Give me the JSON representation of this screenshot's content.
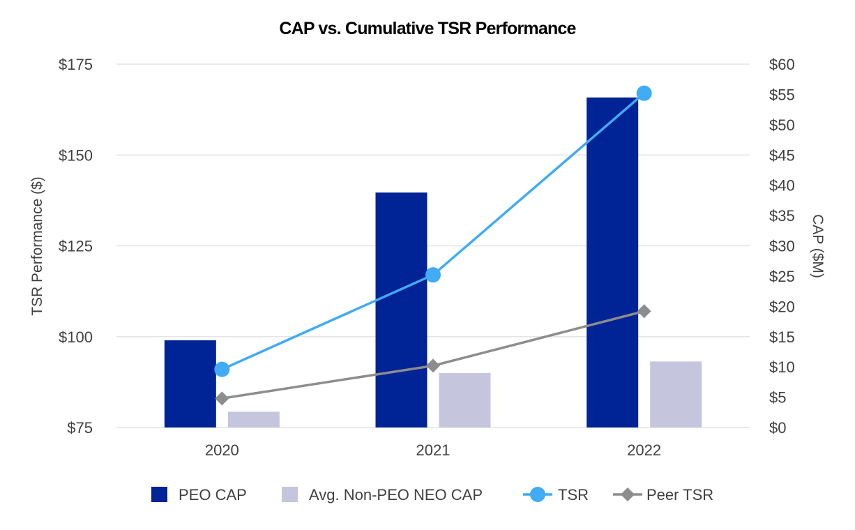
{
  "chart_data": {
    "type": "bar+line",
    "title": "CAP vs. Cumulative TSR Performance",
    "categories": [
      "2020",
      "2021",
      "2022"
    ],
    "left_axis": {
      "label": "TSR Performance ($)",
      "range": [
        75,
        175
      ],
      "ticks": [
        75,
        100,
        125,
        150,
        175
      ],
      "tick_labels": [
        "$75",
        "$100",
        "$125",
        "$150",
        "$175"
      ]
    },
    "right_axis": {
      "label": "CAP ($M)",
      "range": [
        0,
        60
      ],
      "ticks": [
        0,
        5,
        10,
        15,
        20,
        25,
        30,
        35,
        40,
        45,
        50,
        55,
        60
      ],
      "tick_labels": [
        "$0",
        "$5",
        "$10",
        "$15",
        "$20",
        "$25",
        "$30",
        "$35",
        "$40",
        "$45",
        "$50",
        "$55",
        "$60"
      ]
    },
    "gridlines": true,
    "legend_position": "bottom",
    "series": [
      {
        "name": "PEO CAP",
        "kind": "bar",
        "axis": "right",
        "color": "#002395",
        "values": [
          14.4,
          38.8,
          54.5
        ]
      },
      {
        "name": "Avg. Non-PEO NEO CAP",
        "kind": "bar",
        "axis": "right",
        "color": "#c5c5de",
        "values": [
          2.6,
          9.0,
          10.9
        ]
      },
      {
        "name": "TSR",
        "kind": "line",
        "axis": "left",
        "color": "#41abf5",
        "marker": "circle",
        "values": [
          91,
          117,
          167
        ]
      },
      {
        "name": "Peer TSR",
        "kind": "line",
        "axis": "left",
        "color": "#8d8d8d",
        "marker": "diamond",
        "values": [
          83,
          92,
          107
        ]
      }
    ]
  }
}
